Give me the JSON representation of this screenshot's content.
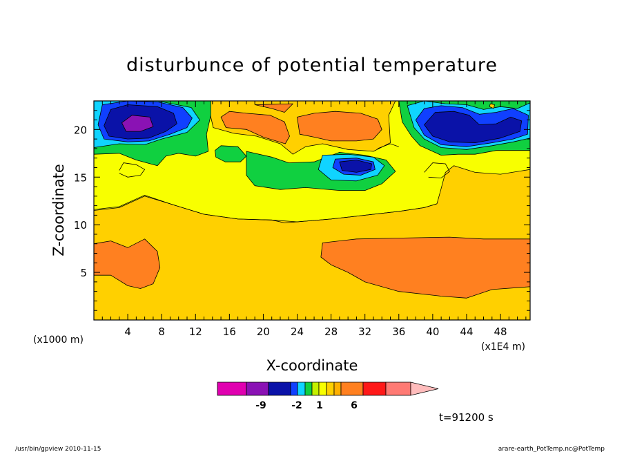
{
  "chart_data": {
    "type": "heatmap",
    "title": "disturbunce of potential temperature",
    "xlabel": "X-coordinate",
    "ylabel": "Z-coordinate",
    "x_unit_label": "(x1E4 m)",
    "y_unit_label": "(x1000 m)",
    "xlim": [
      0,
      51.5
    ],
    "ylim": [
      0,
      23
    ],
    "x_ticks": [
      4,
      8,
      12,
      16,
      20,
      24,
      28,
      32,
      36,
      40,
      44,
      48
    ],
    "y_ticks": [
      5,
      10,
      15,
      20
    ],
    "colorbar": {
      "colors": [
        "#e000b0",
        "#8a12b4",
        "#0a12a8",
        "#1040ff",
        "#10d4ff",
        "#10d040",
        "#c4f000",
        "#f8ff00",
        "#ffd000",
        "#ffb000",
        "#ff8020",
        "#ff1818",
        "#ff7a74",
        "#ffbcbc"
      ],
      "tick_labels": [
        "-9",
        "-2",
        "1",
        "6"
      ]
    },
    "regions": [
      {
        "level": "1",
        "color": "#ffd000",
        "polygon": [
          [
            0,
            0
          ],
          [
            51.5,
            0
          ],
          [
            51.5,
            23
          ],
          [
            0,
            23
          ]
        ]
      },
      {
        "level": "-1",
        "color": "#f8ff00",
        "polygon": [
          [
            0,
            11.5
          ],
          [
            3,
            11.8
          ],
          [
            6,
            13
          ],
          [
            9,
            12.2
          ],
          [
            13,
            11.1
          ],
          [
            17,
            10.6
          ],
          [
            21,
            10.5
          ],
          [
            24,
            10.3
          ],
          [
            28,
            10.6
          ],
          [
            32,
            11.0
          ],
          [
            36,
            11.4
          ],
          [
            39,
            11.8
          ],
          [
            40.5,
            12.2
          ],
          [
            41,
            13.8
          ],
          [
            41.5,
            15.5
          ],
          [
            42.5,
            16.2
          ],
          [
            45,
            15.5
          ],
          [
            48,
            15.3
          ],
          [
            51.5,
            15.8
          ],
          [
            51.5,
            23
          ],
          [
            0,
            23
          ]
        ]
      },
      {
        "level": "2",
        "color": "#ff8020",
        "polygon": [
          [
            0,
            8
          ],
          [
            2,
            8.3
          ],
          [
            4,
            7.6
          ],
          [
            6,
            8.5
          ],
          [
            7.5,
            7.2
          ],
          [
            7.8,
            5.5
          ],
          [
            7,
            3.8
          ],
          [
            5.5,
            3.3
          ],
          [
            4,
            3.6
          ],
          [
            2,
            4.7
          ],
          [
            0,
            4.7
          ]
        ]
      },
      {
        "level": "2",
        "color": "#ff8020",
        "polygon": [
          [
            27,
            8.1
          ],
          [
            31,
            8.5
          ],
          [
            36,
            8.6
          ],
          [
            42,
            8.7
          ],
          [
            46,
            8.5
          ],
          [
            51.5,
            8.5
          ],
          [
            51.5,
            3.5
          ],
          [
            47,
            3.2
          ],
          [
            44,
            2.3
          ],
          [
            41,
            2.5
          ],
          [
            36,
            3.0
          ],
          [
            32,
            4.0
          ],
          [
            30,
            5.0
          ],
          [
            28,
            5.8
          ],
          [
            26.8,
            6.6
          ]
        ]
      },
      {
        "level": "-2",
        "color": "#10d040",
        "polygon": [
          [
            0,
            23
          ],
          [
            0,
            17.4
          ],
          [
            3,
            17.5
          ],
          [
            5,
            16.8
          ],
          [
            7.5,
            16.2
          ],
          [
            8.5,
            17.2
          ],
          [
            10,
            17.5
          ],
          [
            12,
            17.2
          ],
          [
            13.5,
            17.7
          ],
          [
            13.3,
            19.5
          ],
          [
            13.8,
            21.5
          ],
          [
            14,
            23
          ]
        ]
      },
      {
        "level": "-2",
        "color": "#10d040",
        "polygon": [
          [
            18,
            17.7
          ],
          [
            21,
            17.1
          ],
          [
            23,
            16.5
          ],
          [
            26,
            16.6
          ],
          [
            29,
            17.6
          ],
          [
            32,
            17.3
          ],
          [
            34.5,
            16.8
          ],
          [
            35.6,
            15.6
          ],
          [
            34,
            14.3
          ],
          [
            32,
            13.6
          ],
          [
            29,
            13.6
          ],
          [
            25,
            13.9
          ],
          [
            22,
            13.7
          ],
          [
            19,
            14.1
          ],
          [
            18,
            15.2
          ]
        ]
      },
      {
        "level": "-2",
        "color": "#10d040",
        "polygon": [
          [
            14.3,
            17.8
          ],
          [
            15,
            18.3
          ],
          [
            17,
            18.2
          ],
          [
            18,
            17.2
          ],
          [
            17.3,
            16.6
          ],
          [
            15.5,
            16.6
          ],
          [
            14.4,
            17.1
          ]
        ]
      },
      {
        "level": "-2",
        "color": "#10d040",
        "polygon": [
          [
            36,
            23
          ],
          [
            36.4,
            20.8
          ],
          [
            37.5,
            19.3
          ],
          [
            38.5,
            18.3
          ],
          [
            41,
            17.3
          ],
          [
            43,
            17.4
          ],
          [
            45,
            17.4
          ],
          [
            47.5,
            17.8
          ],
          [
            51.5,
            17.8
          ],
          [
            51.5,
            23
          ]
        ]
      },
      {
        "level": "-3",
        "color": "#10d4ff",
        "polygon": [
          [
            0,
            23
          ],
          [
            0,
            18.1
          ],
          [
            3,
            18.5
          ],
          [
            6,
            18.4
          ],
          [
            8,
            19.0
          ],
          [
            11,
            19.7
          ],
          [
            12.5,
            21.0
          ],
          [
            11.5,
            22.3
          ],
          [
            7.5,
            23
          ]
        ]
      },
      {
        "level": "-3",
        "color": "#10d4ff",
        "polygon": [
          [
            27,
            17.3
          ],
          [
            30,
            17.4
          ],
          [
            33,
            17.1
          ],
          [
            34.3,
            16.2
          ],
          [
            33.5,
            15.2
          ],
          [
            31,
            14.6
          ],
          [
            28,
            14.7
          ],
          [
            26.5,
            15.8
          ]
        ]
      },
      {
        "level": "-3",
        "color": "#10d4ff",
        "polygon": [
          [
            37,
            22.5
          ],
          [
            37.8,
            20.2
          ],
          [
            39,
            19.0
          ],
          [
            41,
            18.1
          ],
          [
            44,
            17.9
          ],
          [
            47,
            18.3
          ],
          [
            49.5,
            18.7
          ],
          [
            51.5,
            19.1
          ],
          [
            51.5,
            22.8
          ],
          [
            50,
            22.2
          ],
          [
            48,
            22.4
          ],
          [
            46,
            22.1
          ],
          [
            44,
            22.6
          ],
          [
            41.5,
            22.7
          ],
          [
            39,
            23
          ]
        ]
      },
      {
        "level": "-4",
        "color": "#1040ff",
        "polygon": [
          [
            0.5,
            20.5
          ],
          [
            1.2,
            19.0
          ],
          [
            4,
            18.7
          ],
          [
            6.5,
            18.8
          ],
          [
            9,
            19.5
          ],
          [
            11,
            20.2
          ],
          [
            11.6,
            21.2
          ],
          [
            10.5,
            22.3
          ],
          [
            7.5,
            22.9
          ],
          [
            4,
            23
          ],
          [
            1,
            22.6
          ]
        ]
      },
      {
        "level": "-4",
        "color": "#1040ff",
        "polygon": [
          [
            28.5,
            16.9
          ],
          [
            31,
            17.0
          ],
          [
            33.0,
            16.6
          ],
          [
            33.2,
            15.8
          ],
          [
            31.5,
            15.2
          ],
          [
            29.5,
            15.3
          ],
          [
            28.2,
            16.0
          ]
        ]
      },
      {
        "level": "-4",
        "color": "#1040ff",
        "polygon": [
          [
            38,
            21.0
          ],
          [
            39,
            19.4
          ],
          [
            41,
            18.4
          ],
          [
            44,
            18.2
          ],
          [
            47,
            18.6
          ],
          [
            49.5,
            19.0
          ],
          [
            51.2,
            19.5
          ],
          [
            51.3,
            21.5
          ],
          [
            49.5,
            22.2
          ],
          [
            47.5,
            21.8
          ],
          [
            45.5,
            21.6
          ],
          [
            43.5,
            22.3
          ],
          [
            41,
            22.5
          ],
          [
            39,
            22.2
          ]
        ]
      },
      {
        "level": "-5",
        "color": "#0a12a8",
        "polygon": [
          [
            1.2,
            20.4
          ],
          [
            1.8,
            19.3
          ],
          [
            4,
            19.0
          ],
          [
            6.5,
            19.1
          ],
          [
            8.5,
            19.8
          ],
          [
            9.8,
            20.6
          ],
          [
            9.4,
            21.7
          ],
          [
            7.5,
            22.4
          ],
          [
            4,
            22.6
          ],
          [
            2,
            22.1
          ]
        ]
      },
      {
        "level": "-5",
        "color": "#0a12a8",
        "polygon": [
          [
            29,
            16.6
          ],
          [
            31,
            16.8
          ],
          [
            32.8,
            16.4
          ],
          [
            32.7,
            15.8
          ],
          [
            31,
            15.5
          ],
          [
            29.3,
            15.7
          ]
        ]
      },
      {
        "level": "-5",
        "color": "#0a12a8",
        "polygon": [
          [
            39,
            20.5
          ],
          [
            40,
            19.3
          ],
          [
            42,
            18.7
          ],
          [
            45,
            18.6
          ],
          [
            48,
            19.1
          ],
          [
            50.3,
            19.8
          ],
          [
            50.5,
            20.9
          ],
          [
            49.2,
            21.3
          ],
          [
            47.5,
            20.6
          ],
          [
            45.5,
            20.5
          ],
          [
            44.3,
            21.5
          ],
          [
            42.5,
            21.9
          ],
          [
            40.3,
            21.8
          ]
        ]
      },
      {
        "level": "-6",
        "color": "#8a12b4",
        "polygon": [
          [
            3.3,
            20.7
          ],
          [
            3.8,
            19.8
          ],
          [
            5.5,
            19.8
          ],
          [
            7,
            20.3
          ],
          [
            6.6,
            21.3
          ],
          [
            4.5,
            21.5
          ]
        ]
      },
      {
        "level": "1",
        "color": "#ffd000",
        "polygon": [
          [
            13.8,
            23
          ],
          [
            13.8,
            21.3
          ],
          [
            14.1,
            20.2
          ],
          [
            16.5,
            19.6
          ],
          [
            19.2,
            19.3
          ],
          [
            22,
            18.5
          ],
          [
            23.5,
            17.4
          ],
          [
            25,
            18.2
          ],
          [
            27,
            18.5
          ],
          [
            30,
            17.9
          ],
          [
            33,
            17.7
          ],
          [
            35,
            18.6
          ],
          [
            34.8,
            21.5
          ],
          [
            35.6,
            23
          ]
        ]
      },
      {
        "level": "2",
        "color": "#ff8020",
        "polygon": [
          [
            15,
            21.3
          ],
          [
            15.6,
            20.2
          ],
          [
            18,
            20
          ],
          [
            20,
            19.2
          ],
          [
            22.6,
            18.5
          ],
          [
            23.1,
            19.3
          ],
          [
            22.5,
            20.8
          ],
          [
            20.8,
            21.5
          ],
          [
            18,
            21.7
          ],
          [
            16,
            21.9
          ]
        ]
      },
      {
        "level": "2",
        "color": "#ff8020",
        "polygon": [
          [
            24,
            21.3
          ],
          [
            24.3,
            19.5
          ],
          [
            26,
            19.2
          ],
          [
            28,
            18.8
          ],
          [
            31,
            18.8
          ],
          [
            33,
            19.0
          ],
          [
            34,
            20.0
          ],
          [
            33.5,
            21.1
          ],
          [
            31.5,
            21.7
          ],
          [
            28.5,
            21.9
          ],
          [
            26,
            21.7
          ]
        ]
      },
      {
        "level": "2",
        "color": "#ff8020",
        "polygon": [
          [
            19,
            22.6
          ],
          [
            21,
            22.2
          ],
          [
            22.5,
            21.8
          ],
          [
            23.5,
            22.7
          ]
        ]
      },
      {
        "level": "1",
        "color": "#ffd000",
        "polygon": [
          [
            46.7,
            22.4
          ],
          [
            47.2,
            22.2
          ],
          [
            47.3,
            22.6
          ],
          [
            46.8,
            22.7
          ]
        ]
      }
    ],
    "contour_lines": [
      [
        [
          0,
          11.6
        ],
        [
          3,
          11.9
        ],
        [
          6,
          13.1
        ],
        [
          9,
          12.2
        ],
        [
          13,
          11.1
        ],
        [
          17,
          10.6
        ],
        [
          21,
          10.5
        ],
        [
          22.5,
          10.2
        ],
        [
          24,
          10.3
        ],
        [
          28,
          10.6
        ],
        [
          32,
          11.0
        ],
        [
          36,
          11.4
        ],
        [
          39,
          11.8
        ],
        [
          40.5,
          12.2
        ]
      ],
      [
        [
          3,
          15.7
        ],
        [
          3.5,
          16.5
        ],
        [
          5,
          16.3
        ],
        [
          6,
          15.8
        ],
        [
          5.5,
          15.2
        ],
        [
          4,
          15.0
        ],
        [
          3,
          15.4
        ]
      ],
      [
        [
          39,
          15.5
        ],
        [
          40,
          16.5
        ],
        [
          41.5,
          16.4
        ],
        [
          42,
          15.6
        ],
        [
          41,
          14.9
        ],
        [
          39.5,
          15.0
        ]
      ],
      [
        [
          33.5,
          18.0
        ],
        [
          35,
          18.5
        ],
        [
          36,
          18.2
        ]
      ]
    ]
  },
  "footer": {
    "time_label": "t=91200 s",
    "left_note": "/usr/bin/gpview  2010-11-15",
    "right_note": "arare-earth_PotTemp.nc@PotTemp"
  }
}
